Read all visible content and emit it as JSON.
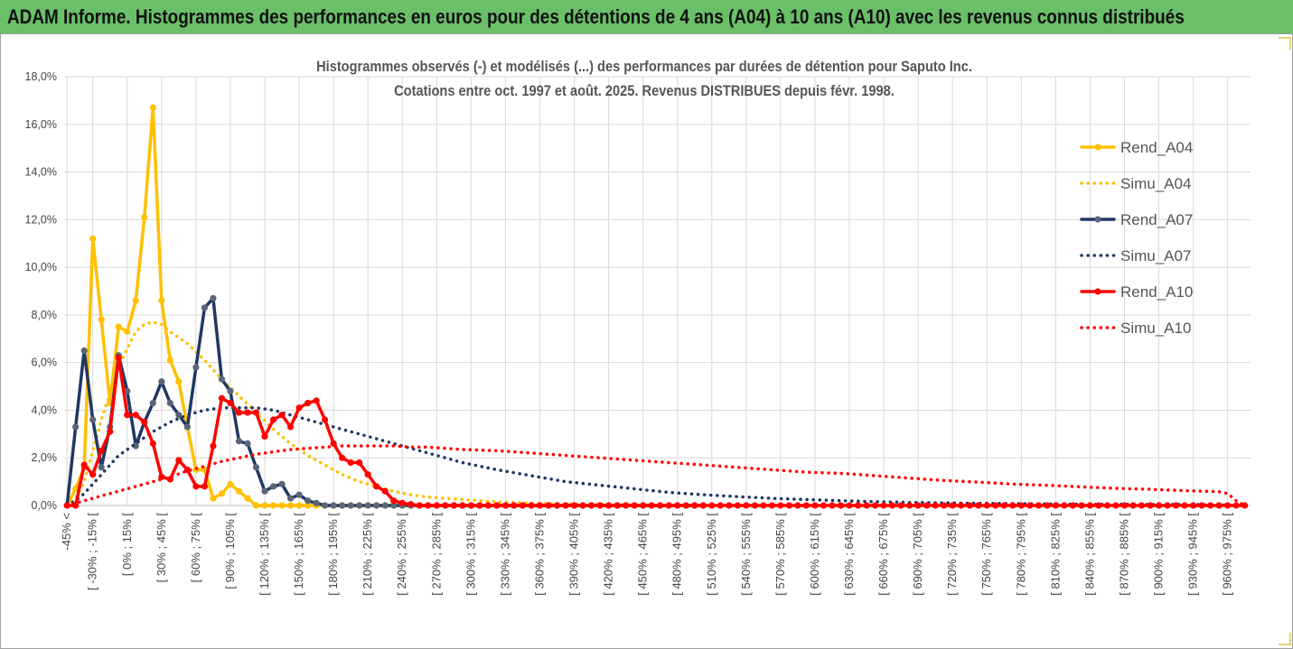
{
  "header": {
    "title": "ADAM Informe. Histogrammes des performances en euros pour des détentions de 4 ans (A04) à 10 ans (A10) avec les revenus connus distribués"
  },
  "chart_data": {
    "type": "line",
    "title": "Histogrammes observés (-) et modélisés (...) des performances par durées de détention pour Saputo Inc.",
    "subtitle": "Cotations entre oct. 1997 et août. 2025. Revenus DISTRIBUES depuis févr. 1998.",
    "xlabel": "",
    "ylabel": "",
    "ylim": [
      0,
      18
    ],
    "yticks": [
      "0,0%",
      "2,0%",
      "4,0%",
      "6,0%",
      "8,0%",
      "10,0%",
      "12,0%",
      "14,0%",
      "16,0%",
      "18,0%"
    ],
    "grid": true,
    "legend_position": "right",
    "x_range": [
      -47.5,
      987.5
    ],
    "ticks": [
      {
        "x": -45,
        "label": "-45% <"
      },
      {
        "x": -22.5,
        "label": "[ -30% ; -15% ["
      },
      {
        "x": 7.5,
        "label": "[ 0% ; 15% ["
      },
      {
        "x": 37.5,
        "label": "[ 30% ; 45% ["
      },
      {
        "x": 67.5,
        "label": "[ 60% ; 75% ["
      },
      {
        "x": 97.5,
        "label": "[ 90% ; 105% ["
      },
      {
        "x": 127.5,
        "label": "[ 120% ; 135% ["
      },
      {
        "x": 157.5,
        "label": "[ 150% ; 165% ["
      },
      {
        "x": 187.5,
        "label": "[ 180% ; 195% ["
      },
      {
        "x": 217.5,
        "label": "[ 210% ; 225% ["
      },
      {
        "x": 247.5,
        "label": "[ 240% ; 255% ["
      },
      {
        "x": 277.5,
        "label": "[ 270% ; 285% ["
      },
      {
        "x": 307.5,
        "label": "[ 300% ; 315% ["
      },
      {
        "x": 337.5,
        "label": "[ 330% ; 345% ["
      },
      {
        "x": 367.5,
        "label": "[ 360% ; 375% ["
      },
      {
        "x": 397.5,
        "label": "[ 390% ; 405% ["
      },
      {
        "x": 427.5,
        "label": "[ 420% ; 435% ["
      },
      {
        "x": 457.5,
        "label": "[ 450% ; 465% ["
      },
      {
        "x": 487.5,
        "label": "[ 480% ; 495% ["
      },
      {
        "x": 517.5,
        "label": "[ 510% ; 525% ["
      },
      {
        "x": 547.5,
        "label": "[ 540% ; 555% ["
      },
      {
        "x": 577.5,
        "label": "[ 570% ; 585% ["
      },
      {
        "x": 607.5,
        "label": "[ 600% ; 615% ["
      },
      {
        "x": 637.5,
        "label": "[ 630% ; 645% ["
      },
      {
        "x": 667.5,
        "label": "[ 660% ; 675% ["
      },
      {
        "x": 697.5,
        "label": "[ 690% ; 705% ["
      },
      {
        "x": 727.5,
        "label": "[ 720% ; 735% ["
      },
      {
        "x": 757.5,
        "label": "[ 750% ; 765% ["
      },
      {
        "x": 787.5,
        "label": "[ 780% ; 795% ["
      },
      {
        "x": 817.5,
        "label": "[ 810% ; 825% ["
      },
      {
        "x": 847.5,
        "label": "[ 840% ; 855% ["
      },
      {
        "x": 877.5,
        "label": "[ 870% ; 885% ["
      },
      {
        "x": 907.5,
        "label": "[ 900% ; 915% ["
      },
      {
        "x": 937.5,
        "label": "[ 930% ; 945% ["
      },
      {
        "x": 967.5,
        "label": "[ 960% ; 975% ["
      }
    ],
    "series": [
      {
        "name": "Rend_A04",
        "color": "#ffc000",
        "style": "solid",
        "marker": true,
        "x": [
          -45,
          -37.5,
          -30,
          -22.5,
          -15,
          -7.5,
          0,
          7.5,
          15,
          22.5,
          30,
          37.5,
          45,
          52.5,
          60,
          67.5,
          75,
          82.5,
          90,
          97.5,
          105,
          112.5,
          120,
          127.5,
          135,
          142.5,
          150,
          157.5,
          165,
          172.5,
          180,
          187.5,
          195,
          202.5,
          210,
          217.5,
          225,
          232.5,
          240,
          247.5,
          255,
          262.5,
          270,
          277.5,
          285,
          292.5,
          300,
          307.5,
          315,
          322.5,
          330,
          337.5,
          345,
          352.5,
          360,
          367.5,
          375,
          382.5,
          390
        ],
        "y": [
          0.0,
          0.7,
          1.6,
          11.2,
          7.8,
          4.3,
          7.5,
          7.3,
          8.6,
          12.1,
          16.7,
          8.6,
          6.1,
          5.2,
          3.3,
          1.5,
          1.5,
          0.3,
          0.5,
          0.9,
          0.6,
          0.3,
          0.0,
          0.0,
          0.0,
          0.0,
          0.0,
          0.0,
          0.0,
          0.0,
          0.0,
          0.0,
          0.0,
          0.0,
          0.0,
          0.0,
          0.0,
          0.0,
          0.0,
          0.0,
          0.0,
          0.0,
          0.0,
          0.0,
          0.0,
          0.0,
          0.0,
          0.0,
          0.0,
          0.0,
          0.0,
          0.0,
          0.0,
          0.0,
          0.0,
          0.0,
          0.0,
          0.0,
          0.0
        ]
      },
      {
        "name": "Simu_A04",
        "color": "#ffc000",
        "style": "dotted",
        "marker": false,
        "x": [
          -45,
          -37.5,
          -30,
          -22.5,
          -15,
          -7.5,
          0,
          7.5,
          15,
          22.5,
          30,
          37.5,
          45,
          60,
          75,
          90,
          105,
          120,
          135,
          150,
          165,
          180,
          195,
          210,
          225,
          240,
          255,
          270,
          285,
          300,
          330,
          360,
          390,
          420,
          450,
          480,
          510,
          540,
          570,
          600
        ],
        "y": [
          0.0,
          0.3,
          1.0,
          2.3,
          3.6,
          4.7,
          5.8,
          6.6,
          7.3,
          7.6,
          7.7,
          7.6,
          7.3,
          6.8,
          6.1,
          5.3,
          4.6,
          3.9,
          3.2,
          2.6,
          2.1,
          1.7,
          1.3,
          1.0,
          0.8,
          0.6,
          0.45,
          0.35,
          0.3,
          0.25,
          0.15,
          0.1,
          0.07,
          0.05,
          0.03,
          0.02,
          0.01,
          0.0,
          0.0,
          0.0
        ]
      },
      {
        "name": "Rend_A07",
        "color": "#1f3864",
        "style": "solid",
        "marker": true,
        "x": [
          -45,
          -37.5,
          -30,
          -22.5,
          -15,
          -7.5,
          0,
          7.5,
          15,
          22.5,
          30,
          37.5,
          45,
          52.5,
          60,
          67.5,
          75,
          82.5,
          90,
          97.5,
          105,
          112.5,
          120,
          127.5,
          135,
          142.5,
          150,
          157.5,
          165,
          172.5,
          180,
          187.5,
          195,
          202.5,
          210,
          217.5,
          225,
          232.5,
          240,
          247.5,
          255,
          262.5,
          270,
          277.5,
          285,
          292.5,
          300,
          307.5,
          315,
          322.5,
          330,
          337.5,
          345,
          352.5,
          360,
          367.5,
          375,
          382.5,
          390,
          397.5,
          405,
          412.5,
          420,
          427.5,
          435,
          442.5,
          450,
          457.5,
          465,
          472.5,
          480,
          487.5,
          495,
          502.5,
          510
        ],
        "y": [
          0.0,
          3.3,
          6.5,
          3.6,
          1.6,
          3.3,
          6.3,
          4.8,
          2.5,
          3.5,
          4.3,
          5.2,
          4.3,
          3.8,
          3.3,
          5.8,
          8.3,
          8.7,
          5.3,
          4.8,
          2.7,
          2.6,
          1.6,
          0.6,
          0.8,
          0.9,
          0.3,
          0.45,
          0.2,
          0.1,
          0.0,
          0.0,
          0.0,
          0.0,
          0.0,
          0.0,
          0.0,
          0.0,
          0.0,
          0.0,
          0.0,
          0.0,
          0.0,
          0.0,
          0.0,
          0.0,
          0.0,
          0.0,
          0.0,
          0.0,
          0.0,
          0.0,
          0.0,
          0.0,
          0.0,
          0.0,
          0.0,
          0.0,
          0.0,
          0.0,
          0.0,
          0.0,
          0.0,
          0.0,
          0.0,
          0.0,
          0.0,
          0.0,
          0.0,
          0.0,
          0.0,
          0.0,
          0.0,
          0.0,
          0.0
        ]
      },
      {
        "name": "Simu_A07",
        "color": "#1f3864",
        "style": "dotted",
        "marker": false,
        "x": [
          -45,
          -37.5,
          -30,
          -22.5,
          -15,
          -7.5,
          0,
          15,
          30,
          45,
          60,
          75,
          90,
          105,
          120,
          135,
          150,
          165,
          180,
          195,
          210,
          225,
          240,
          255,
          270,
          285,
          300,
          330,
          360,
          390,
          420,
          450,
          480,
          510,
          540,
          570,
          600,
          630,
          660,
          690,
          720,
          750,
          780,
          810,
          840,
          870,
          900,
          930,
          960,
          975
        ],
        "y": [
          0.0,
          0.2,
          0.5,
          0.9,
          1.3,
          1.7,
          2.1,
          2.6,
          3.1,
          3.5,
          3.8,
          4.0,
          4.1,
          4.1,
          4.1,
          4.0,
          3.8,
          3.6,
          3.4,
          3.2,
          3.0,
          2.8,
          2.6,
          2.4,
          2.2,
          2.0,
          1.8,
          1.5,
          1.25,
          1.0,
          0.85,
          0.7,
          0.55,
          0.45,
          0.37,
          0.3,
          0.25,
          0.2,
          0.16,
          0.13,
          0.11,
          0.09,
          0.08,
          0.06,
          0.05,
          0.05,
          0.04,
          0.04,
          0.03,
          0.0
        ]
      },
      {
        "name": "Rend_A10",
        "color": "#ff0000",
        "style": "solid",
        "marker": true,
        "x": [
          -45,
          -37.5,
          -30,
          -22.5,
          -15,
          -7.5,
          0,
          7.5,
          15,
          22.5,
          30,
          37.5,
          45,
          52.5,
          60,
          67.5,
          75,
          82.5,
          90,
          97.5,
          105,
          112.5,
          120,
          127.5,
          135,
          142.5,
          150,
          157.5,
          165,
          172.5,
          180,
          187.5,
          195,
          202.5,
          210,
          217.5,
          225,
          232.5,
          240,
          247.5,
          255,
          262.5,
          270,
          277.5,
          285,
          292.5,
          300,
          307.5,
          315,
          322.5,
          330,
          337.5,
          345,
          352.5,
          360,
          367.5,
          375,
          382.5,
          390,
          397.5,
          405,
          412.5,
          420,
          427.5,
          435,
          442.5,
          450,
          457.5,
          465,
          472.5,
          480,
          487.5,
          495,
          502.5,
          510,
          517.5,
          525,
          532.5,
          540,
          547.5,
          555,
          562.5,
          570,
          577.5,
          585,
          592.5,
          600,
          607.5,
          615,
          622.5,
          630,
          637.5,
          645,
          652.5,
          660,
          667.5,
          675,
          682.5,
          690,
          697.5,
          705,
          712.5,
          720,
          727.5,
          735,
          742.5,
          750,
          757.5,
          765,
          772.5,
          780,
          787.5,
          795,
          802.5,
          810,
          817.5,
          825,
          832.5,
          840,
          847.5,
          855,
          862.5,
          870,
          877.5,
          885,
          892.5,
          900,
          907.5,
          915,
          922.5,
          930,
          937.5,
          945,
          952.5,
          960,
          967.5,
          975,
          982.5
        ],
        "y": [
          0.0,
          0.0,
          1.7,
          1.3,
          2.3,
          3.1,
          6.2,
          3.8,
          3.8,
          3.5,
          2.6,
          1.2,
          1.1,
          1.9,
          1.5,
          0.8,
          0.8,
          2.5,
          4.5,
          4.3,
          3.9,
          3.9,
          3.9,
          2.9,
          3.6,
          3.8,
          3.3,
          4.1,
          4.3,
          4.4,
          3.6,
          2.6,
          2.0,
          1.8,
          1.8,
          1.3,
          0.8,
          0.6,
          0.2,
          0.1,
          0.05,
          0.0,
          0.0,
          0.0,
          0.0,
          0.0,
          0.0,
          0.0,
          0.0,
          0.0,
          0.0,
          0.0,
          0.0,
          0.0,
          0.0,
          0.0,
          0.0,
          0.0,
          0.0,
          0.0,
          0.0,
          0.0,
          0.0,
          0.0,
          0.0,
          0.0,
          0.0,
          0.0,
          0.0,
          0.0,
          0.0,
          0.0,
          0.0,
          0.0,
          0.0,
          0.0,
          0.0,
          0.0,
          0.0,
          0.0,
          0.0,
          0.0,
          0.0,
          0.0,
          0.0,
          0.0,
          0.0,
          0.0,
          0.0,
          0.0,
          0.0,
          0.0,
          0.0,
          0.0,
          0.0,
          0.0,
          0.0,
          0.0,
          0.0,
          0.0,
          0.0,
          0.0,
          0.0,
          0.0,
          0.0,
          0.0,
          0.0,
          0.0,
          0.0,
          0.0,
          0.0,
          0.0,
          0.0,
          0.0,
          0.0,
          0.0,
          0.0,
          0.0,
          0.0,
          0.0,
          0.0,
          0.0,
          0.0,
          0.0,
          0.0,
          0.0,
          0.0,
          0.0,
          0.0,
          0.0,
          0.0,
          0.0,
          0.0,
          0.0,
          0.0,
          0.0,
          0.0,
          0.0
        ]
      },
      {
        "name": "Simu_A10",
        "color": "#ff0000",
        "style": "dotted",
        "marker": false,
        "x": [
          -45,
          -37.5,
          -30,
          -15,
          0,
          15,
          30,
          45,
          60,
          75,
          90,
          105,
          120,
          135,
          150,
          165,
          180,
          195,
          210,
          225,
          240,
          255,
          270,
          285,
          300,
          330,
          360,
          390,
          420,
          450,
          480,
          510,
          540,
          570,
          600,
          630,
          660,
          690,
          720,
          750,
          780,
          810,
          840,
          870,
          900,
          930,
          960,
          967.5,
          975,
          982.5
        ],
        "y": [
          0.0,
          0.1,
          0.2,
          0.4,
          0.6,
          0.8,
          1.0,
          1.2,
          1.45,
          1.65,
          1.85,
          2.0,
          2.15,
          2.25,
          2.35,
          2.4,
          2.45,
          2.5,
          2.5,
          2.5,
          2.5,
          2.45,
          2.45,
          2.4,
          2.35,
          2.3,
          2.2,
          2.1,
          2.0,
          1.9,
          1.8,
          1.7,
          1.6,
          1.5,
          1.4,
          1.35,
          1.25,
          1.15,
          1.05,
          0.98,
          0.9,
          0.85,
          0.78,
          0.72,
          0.68,
          0.62,
          0.58,
          0.5,
          0.2,
          0.0
        ]
      }
    ]
  }
}
